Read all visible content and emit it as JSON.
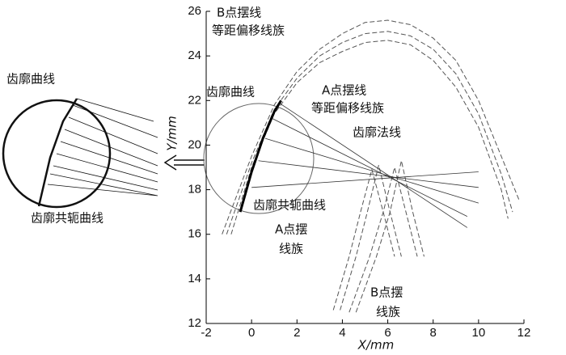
{
  "chart_data": {
    "type": "line",
    "x_label": "X/mm",
    "y_label": "Y/mm",
    "xlim": [
      -2,
      12
    ],
    "ylim": [
      12,
      26
    ],
    "xticks": [
      -2,
      0,
      2,
      4,
      6,
      8,
      10,
      12
    ],
    "yticks": [
      12,
      14,
      16,
      18,
      20,
      22,
      24,
      26
    ],
    "annotations": [
      "B点摆线",
      "等距偏移线族",
      "齿廓曲线",
      "A点摆线",
      "等距偏移线族",
      "齿廓法线",
      "齿廓共轭曲线",
      "A点摆",
      "线族",
      "B点摆",
      "线族"
    ],
    "inset_labels": [
      "齿廓曲线",
      "齿廓共轭曲线"
    ],
    "series": [
      {
        "color": "#555",
        "dashed": true,
        "x": [
          -1.3,
          0,
          1,
          2,
          3,
          4,
          5,
          6,
          7,
          8,
          9,
          10,
          11,
          11.8
        ],
        "values": [
          16,
          19.5,
          21.8,
          23.3,
          24.3,
          25,
          25.5,
          25.6,
          25.4,
          24.8,
          23.8,
          22,
          19.5,
          17.5
        ]
      },
      {
        "color": "#555",
        "dashed": true,
        "x": [
          -1.1,
          0,
          1,
          2,
          3,
          4,
          5,
          6,
          7,
          8,
          9,
          10,
          11,
          11.5
        ],
        "values": [
          16,
          19.2,
          21.6,
          23,
          24,
          24.6,
          25,
          25.1,
          24.9,
          24.3,
          23.2,
          21.4,
          18.7,
          17
        ]
      },
      {
        "color": "#555",
        "dashed": true,
        "x": [
          -0.9,
          0,
          1,
          2,
          3,
          4,
          5,
          6,
          7,
          8,
          9,
          10,
          11,
          11.3
        ],
        "values": [
          16,
          19,
          21.4,
          22.8,
          23.7,
          24.2,
          24.6,
          24.7,
          24.5,
          23.8,
          22.6,
          20.8,
          18,
          16.7
        ]
      },
      {
        "color": "#555",
        "dashed": true,
        "x": [
          3.6,
          4.3,
          4.8,
          5.3,
          5.8,
          6.3
        ],
        "values": [
          12.6,
          15,
          17,
          18.9,
          17,
          15
        ]
      },
      {
        "color": "#555",
        "dashed": true,
        "x": [
          3.9,
          4.6,
          5.1,
          5.6,
          6.1,
          6.6
        ],
        "values": [
          12.6,
          15,
          17,
          19.1,
          17,
          15
        ]
      },
      {
        "color": "#555",
        "dashed": true,
        "x": [
          4.3,
          5.2,
          5.8,
          6.3,
          6.8,
          7.3
        ],
        "values": [
          12.5,
          15,
          17,
          19,
          17,
          15
        ]
      },
      {
        "color": "#555",
        "dashed": true,
        "x": [
          4.6,
          5.5,
          6.1,
          6.6,
          7.1,
          7.6
        ],
        "values": [
          12.5,
          15,
          17,
          19.3,
          17,
          15
        ]
      },
      {
        "color": "#333",
        "dashed": false,
        "x": [
          0,
          10
        ],
        "values": [
          18.1,
          18.8
        ]
      },
      {
        "color": "#333",
        "dashed": false,
        "x": [
          0.3,
          10
        ],
        "values": [
          19.3,
          18.1
        ]
      },
      {
        "color": "#333",
        "dashed": false,
        "x": [
          0.6,
          10
        ],
        "values": [
          20.3,
          17.4
        ]
      },
      {
        "color": "#333",
        "dashed": false,
        "x": [
          0.9,
          9.5
        ],
        "values": [
          21.2,
          16.8
        ]
      },
      {
        "color": "#333",
        "dashed": false,
        "x": [
          1.2,
          9.5
        ],
        "values": [
          21.9,
          16.3
        ]
      },
      {
        "color": "#000",
        "dashed": false,
        "x": [
          -0.5,
          0,
          0.5,
          1,
          1.3
        ],
        "values": [
          17,
          18.8,
          20.3,
          21.5,
          22
        ]
      }
    ]
  }
}
